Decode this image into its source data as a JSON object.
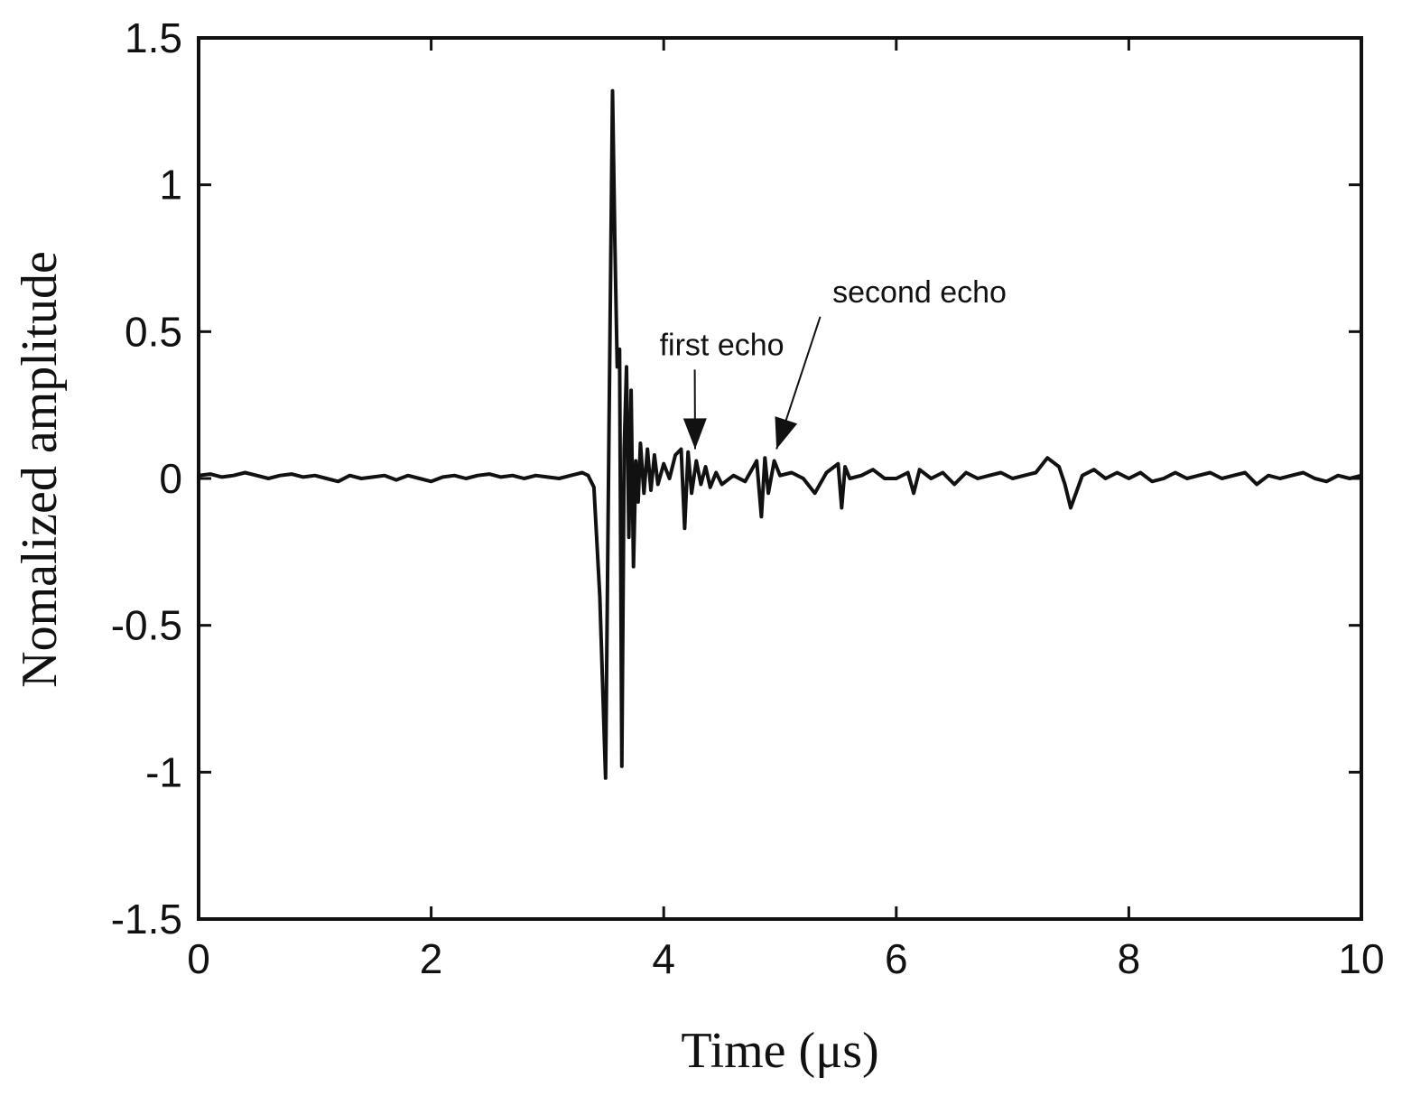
{
  "chart_data": {
    "type": "line",
    "title": "",
    "xlabel": "Time (μs)",
    "ylabel": "Nomalized amplitude",
    "xlim": [
      0,
      10
    ],
    "ylim": [
      -1.5,
      1.5
    ],
    "xticks": [
      0,
      2,
      4,
      6,
      8,
      10
    ],
    "yticks": [
      -1.5,
      -1,
      -0.5,
      0,
      0.5,
      1,
      1.5
    ],
    "xtick_labels": [
      "0",
      "2",
      "4",
      "6",
      "8",
      "10"
    ],
    "ytick_labels": [
      "-1.5",
      "-1",
      "-0.5",
      "0",
      "0.5",
      "1",
      "1.5"
    ],
    "grid": false,
    "line_color": "#111111",
    "series": [
      {
        "x": [
          0,
          0.1,
          0.2,
          0.3,
          0.4,
          0.5,
          0.6,
          0.7,
          0.8,
          0.9,
          1.0,
          1.1,
          1.2,
          1.3,
          1.4,
          1.5,
          1.6,
          1.7,
          1.8,
          1.9,
          2.0,
          2.1,
          2.2,
          2.3,
          2.4,
          2.5,
          2.6,
          2.7,
          2.8,
          2.9,
          3.0,
          3.1,
          3.2,
          3.3,
          3.35,
          3.4,
          3.45,
          3.5,
          3.53,
          3.56,
          3.58,
          3.6,
          3.62,
          3.64,
          3.66,
          3.68,
          3.7,
          3.72,
          3.74,
          3.76,
          3.78,
          3.8,
          3.83,
          3.86,
          3.89,
          3.92,
          3.95,
          4.0,
          4.05,
          4.1,
          4.15,
          4.18,
          4.21,
          4.24,
          4.28,
          4.32,
          4.36,
          4.4,
          4.45,
          4.5,
          4.6,
          4.7,
          4.8,
          4.84,
          4.87,
          4.9,
          4.95,
          5.0,
          5.1,
          5.2,
          5.3,
          5.4,
          5.5,
          5.53,
          5.56,
          5.6,
          5.7,
          5.8,
          5.9,
          6.0,
          6.1,
          6.15,
          6.2,
          6.3,
          6.4,
          6.5,
          6.6,
          6.7,
          6.8,
          6.9,
          7.0,
          7.1,
          7.2,
          7.3,
          7.4,
          7.45,
          7.5,
          7.6,
          7.7,
          7.8,
          7.9,
          8.0,
          8.1,
          8.2,
          8.3,
          8.4,
          8.5,
          8.6,
          8.7,
          8.8,
          8.9,
          9.0,
          9.1,
          9.2,
          9.3,
          9.4,
          9.5,
          9.6,
          9.7,
          9.8,
          9.9,
          10.0
        ],
        "y": [
          0.01,
          0.015,
          0.005,
          0.01,
          0.02,
          0.01,
          0.0,
          0.01,
          0.015,
          0.005,
          0.01,
          0.0,
          -0.01,
          0.01,
          0.0,
          0.005,
          0.01,
          -0.005,
          0.01,
          0.0,
          -0.01,
          0.005,
          0.01,
          0.0,
          0.01,
          0.015,
          0.005,
          0.01,
          0.0,
          0.01,
          0.005,
          0.0,
          0.01,
          0.02,
          0.01,
          -0.03,
          -0.4,
          -1.02,
          0.2,
          1.32,
          0.8,
          0.38,
          0.44,
          -0.98,
          0.1,
          0.38,
          -0.2,
          0.3,
          -0.3,
          0.06,
          -0.08,
          0.12,
          -0.05,
          0.1,
          -0.04,
          0.08,
          -0.02,
          0.05,
          0.0,
          0.08,
          0.1,
          -0.17,
          0.09,
          -0.05,
          0.06,
          -0.02,
          0.04,
          -0.03,
          0.02,
          -0.02,
          0.01,
          -0.01,
          0.06,
          -0.13,
          0.07,
          -0.05,
          0.06,
          0.01,
          0.02,
          0.0,
          -0.05,
          0.02,
          0.05,
          -0.1,
          0.04,
          0.0,
          0.01,
          0.03,
          0.0,
          0.0,
          0.02,
          -0.05,
          0.03,
          0.0,
          0.02,
          -0.02,
          0.02,
          0.0,
          0.01,
          0.02,
          0.0,
          0.01,
          0.02,
          0.07,
          0.04,
          -0.02,
          -0.1,
          0.01,
          0.03,
          0.0,
          0.02,
          0.0,
          0.02,
          -0.01,
          0.0,
          0.02,
          0.0,
          0.01,
          0.02,
          0.0,
          0.01,
          0.02,
          -0.02,
          0.01,
          0.0,
          0.01,
          0.02,
          0.0,
          -0.01,
          0.01,
          0.0,
          0.01
        ]
      }
    ],
    "annotations": [
      {
        "text": "first echo",
        "x": 4.5,
        "y": 0.42,
        "arrow_to_x": 4.27,
        "arrow_to_y": 0.1
      },
      {
        "text": "second echo",
        "x": 6.2,
        "y": 0.6,
        "arrow_to_x": 4.97,
        "arrow_to_y": 0.1
      }
    ]
  }
}
